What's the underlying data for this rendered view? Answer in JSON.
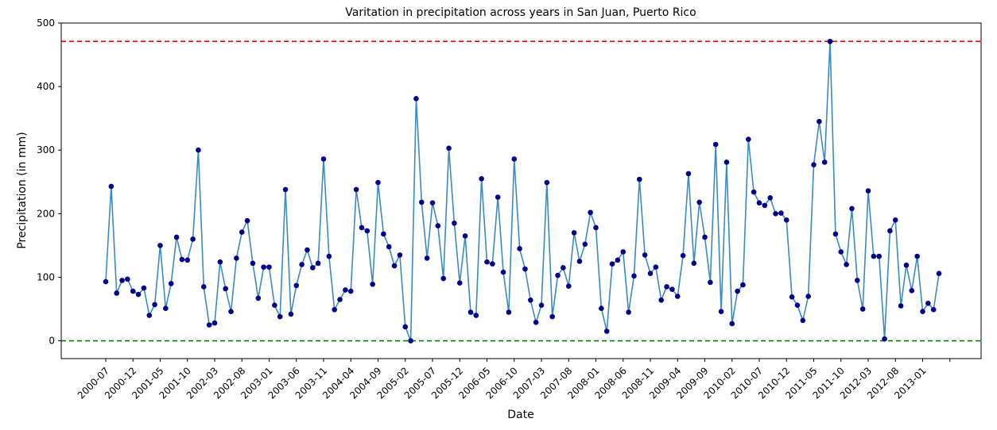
{
  "chart_data": {
    "type": "line",
    "title": "Varitation in precipitation across years in San Juan, Puerto Rico",
    "xlabel": "Date",
    "ylabel": "Precipitation (in mm)",
    "ylim": [
      -28,
      500
    ],
    "yticks": [
      0,
      100,
      200,
      300,
      400,
      500
    ],
    "grid": false,
    "x_tick_labels": [
      "2000-07",
      "2000-12",
      "2001-05",
      "2001-10",
      "2002-03",
      "2002-08",
      "2003-01",
      "2003-06",
      "2003-11",
      "2004-04",
      "2004-09",
      "2005-02",
      "2005-07",
      "2005-12",
      "2006-05",
      "2006-10",
      "2007-03",
      "2007-08",
      "2008-01",
      "2008-06",
      "2008-11",
      "2009-04",
      "2009-09",
      "2010-02",
      "2010-07",
      "2010-12",
      "2011-05",
      "2011-10",
      "2012-03",
      "2012-08",
      "2013-01"
    ],
    "x_start": "2000-07",
    "series": [
      {
        "line_color": "#3b8bc2",
        "marker_color": "#00008b",
        "values": [
          93,
          243,
          75,
          95,
          97,
          78,
          73,
          83,
          40,
          57,
          150,
          51,
          90,
          163,
          128,
          127,
          160,
          300,
          85,
          25,
          28,
          124,
          82,
          46,
          130,
          171,
          189,
          122,
          67,
          116,
          116,
          56,
          38,
          238,
          42,
          87,
          120,
          143,
          115,
          122,
          286,
          133,
          49,
          65,
          80,
          78,
          238,
          178,
          173,
          89,
          249,
          168,
          148,
          118,
          135,
          22,
          0,
          381,
          218,
          130,
          217,
          181,
          98,
          303,
          185,
          91,
          165,
          45,
          40,
          255,
          124,
          121,
          226,
          108,
          45,
          286,
          145,
          113,
          64,
          29,
          56,
          249,
          38,
          103,
          115,
          86,
          170,
          125,
          152,
          202,
          178,
          51,
          15,
          121,
          127,
          140,
          45,
          102,
          254,
          135,
          106,
          116,
          64,
          85,
          81,
          70,
          134,
          263,
          122,
          218,
          163,
          92,
          309,
          46,
          281,
          27,
          78,
          88,
          317,
          234,
          217,
          213,
          225,
          200,
          201,
          190,
          69,
          56,
          32,
          70,
          277,
          345,
          281,
          471,
          168,
          140,
          120,
          208,
          95,
          50,
          236,
          133,
          133,
          3,
          173,
          190,
          55,
          119,
          79,
          133,
          46,
          59,
          49,
          106
        ]
      }
    ],
    "reference_lines": [
      {
        "value": 471,
        "color": "#ff0000",
        "style": "dashed"
      },
      {
        "value": 0,
        "color": "#008000",
        "style": "dashed"
      }
    ]
  }
}
